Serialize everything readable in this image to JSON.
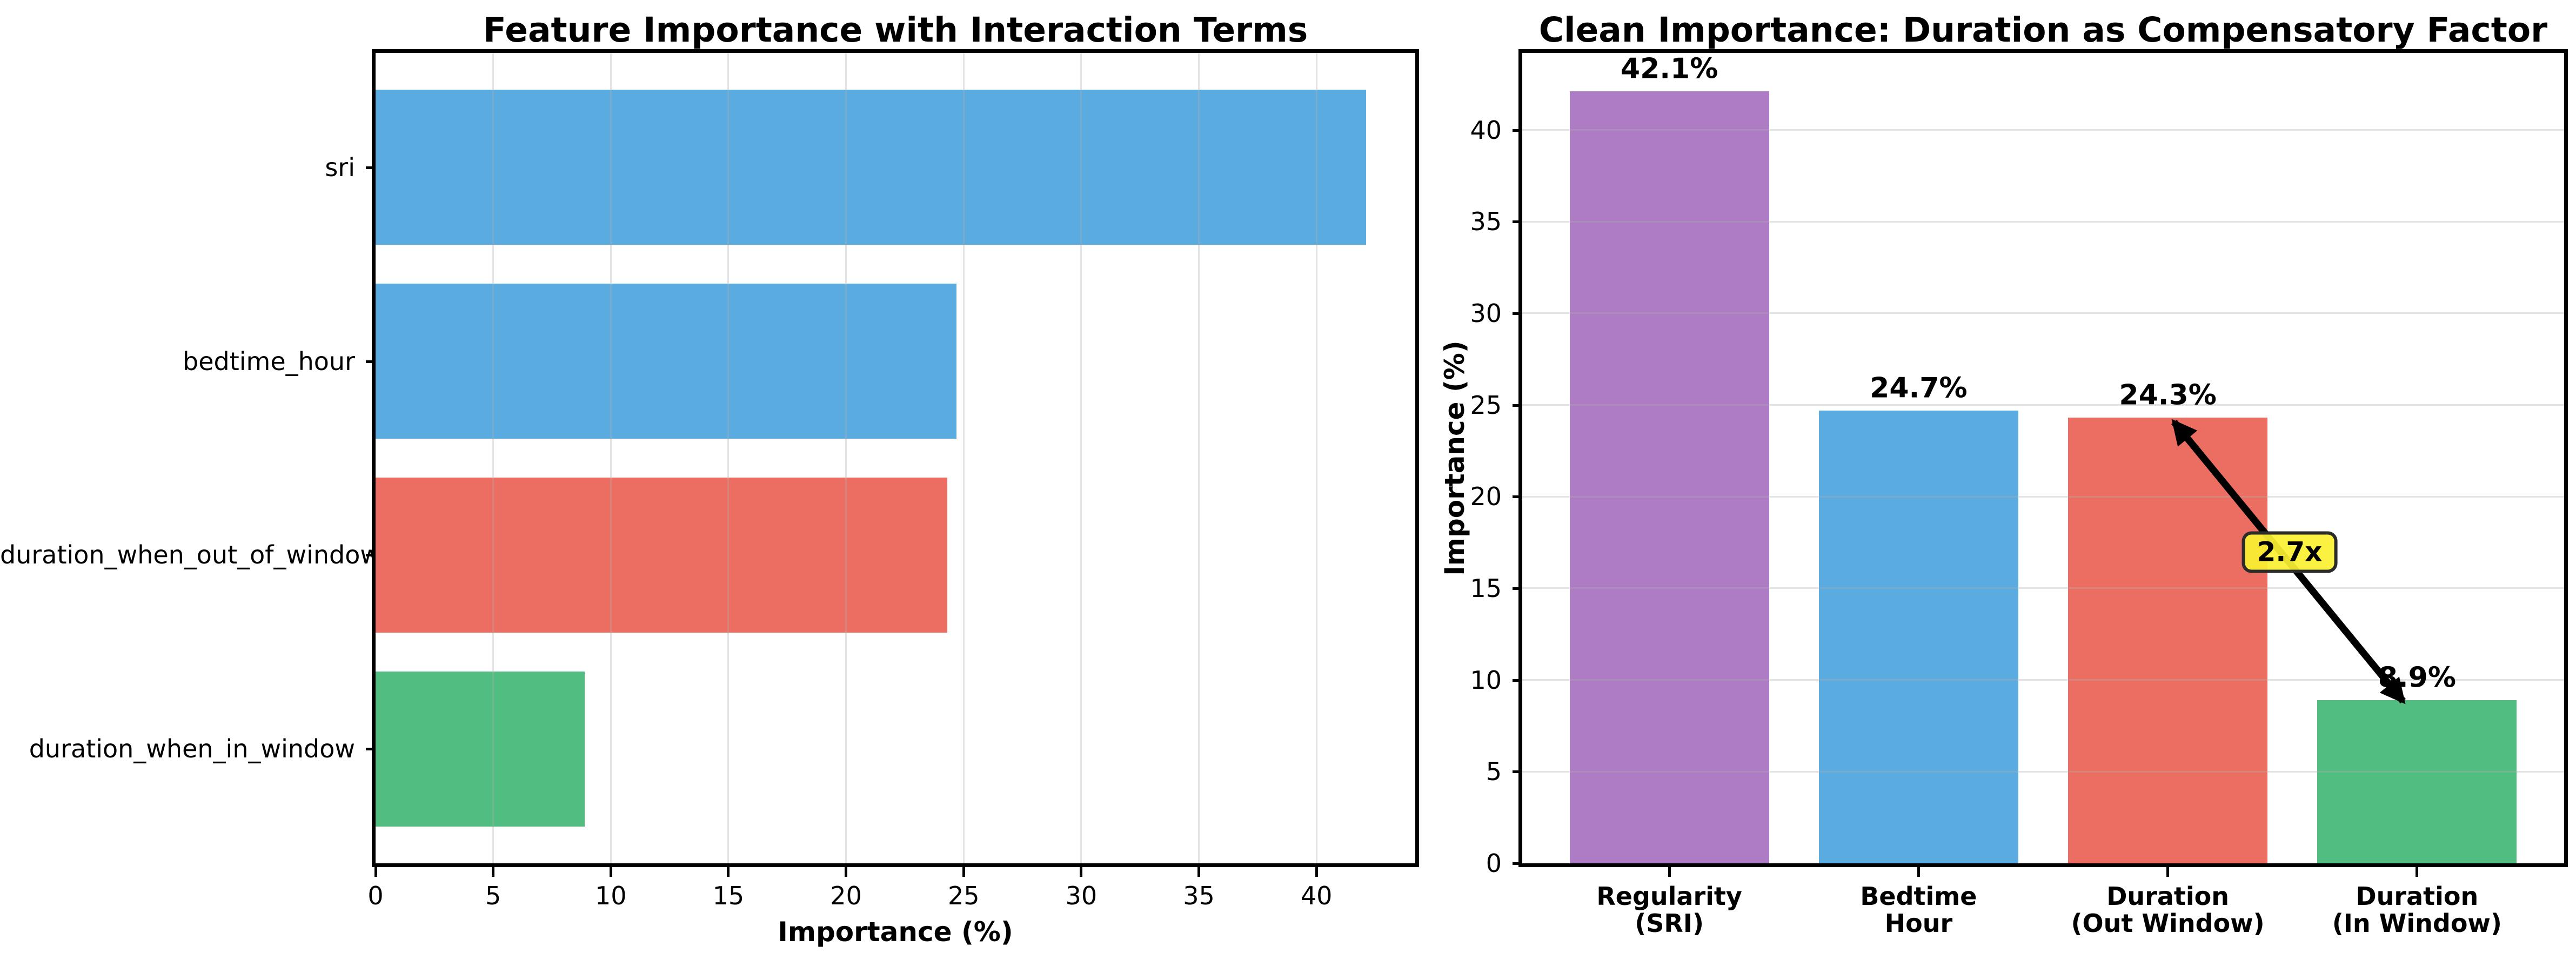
{
  "chart_data": [
    {
      "type": "bar",
      "orientation": "horizontal",
      "title": "Feature Importance with Interaction Terms",
      "xlabel": "Importance (%)",
      "categories": [
        "sri",
        "bedtime_hour",
        "duration_when_out_of_window",
        "duration_when_in_window"
      ],
      "values": [
        42.1,
        24.7,
        24.3,
        8.9
      ],
      "bar_colors": [
        "#5aabe0",
        "#5aabe0",
        "#ec6e62",
        "#52bd81"
      ],
      "xlim": [
        0,
        44.2
      ],
      "xticks": [
        0,
        5,
        10,
        15,
        20,
        25,
        30,
        35,
        40
      ],
      "grid": "vertical-light-gray"
    },
    {
      "type": "bar",
      "orientation": "vertical",
      "title": "Clean Importance: Duration as Compensatory Factor",
      "ylabel": "Importance (%)",
      "categories": [
        "Regularity\n(SRI)",
        "Bedtime\nHour",
        "Duration\n(Out Window)",
        "Duration\n(In Window)"
      ],
      "values": [
        42.1,
        24.7,
        24.3,
        8.9
      ],
      "value_labels": [
        "42.1%",
        "24.7%",
        "24.3%",
        "8.9%"
      ],
      "bar_colors": [
        "#ad7cc5",
        "#5aabe0",
        "#ec6e62",
        "#52bd81"
      ],
      "ylim": [
        0,
        44.2
      ],
      "yticks": [
        0,
        5,
        10,
        15,
        20,
        25,
        30,
        35,
        40
      ],
      "grid": "horizontal-light-gray",
      "annotation": {
        "label": "2.7x",
        "from_category": "Duration (Out Window)",
        "to_category": "Duration (In Window)",
        "box_color": "#f7ee33"
      }
    }
  ]
}
